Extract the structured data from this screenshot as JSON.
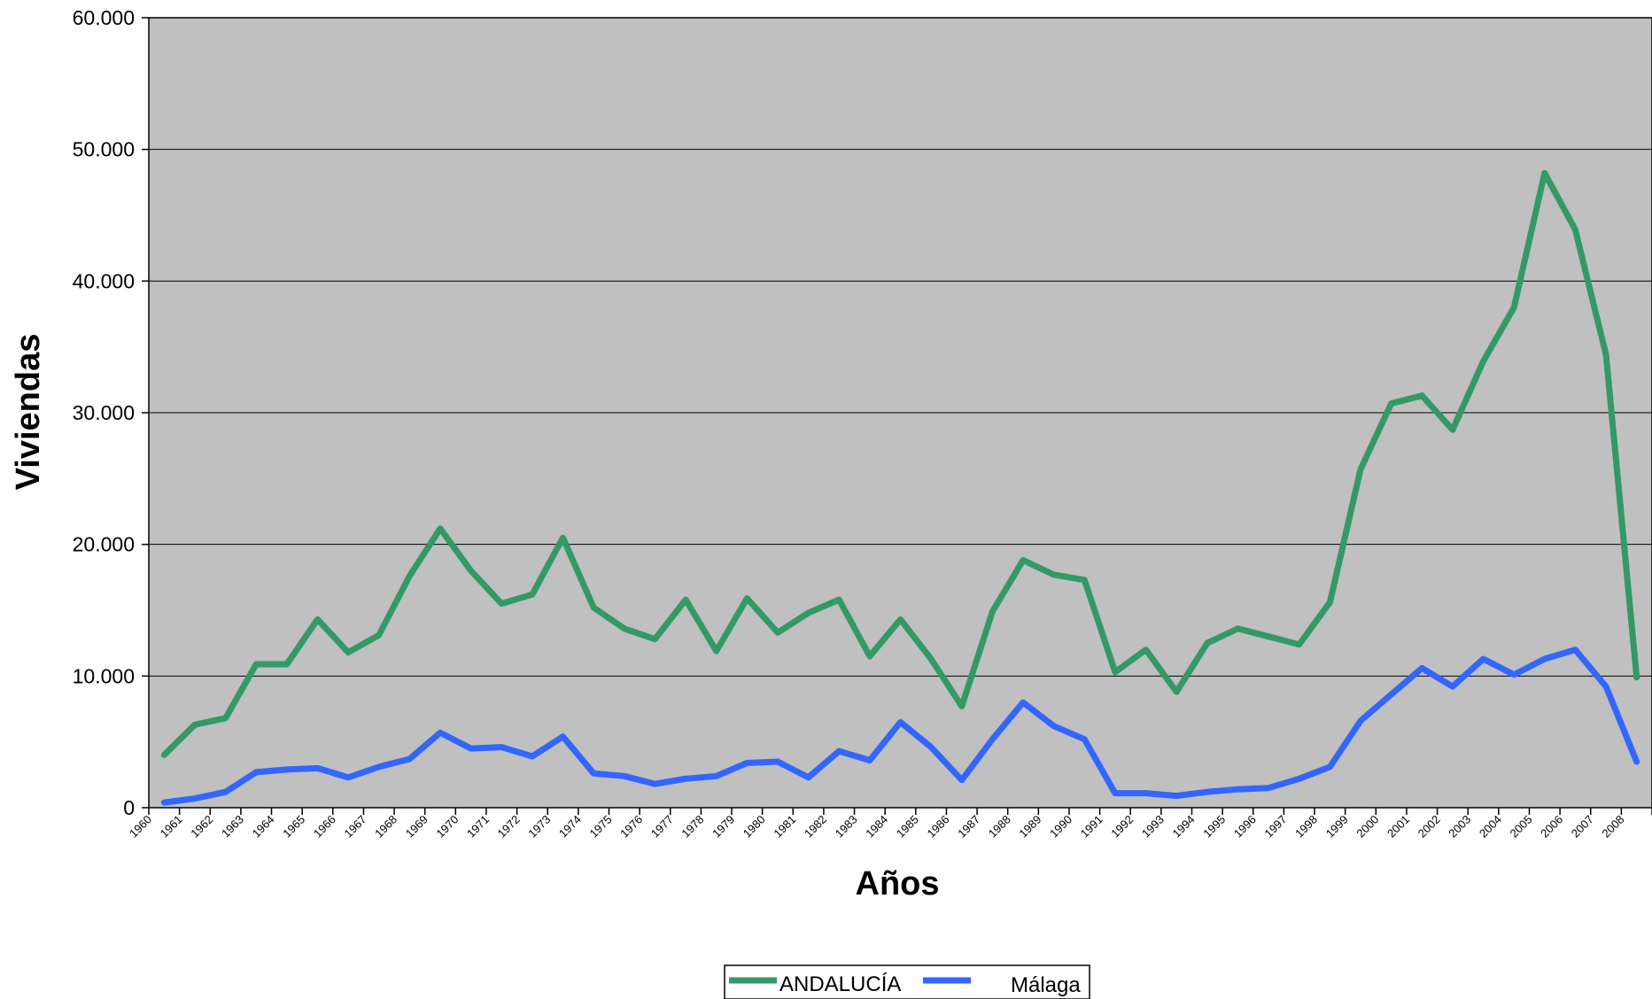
{
  "chart_data": {
    "type": "line",
    "xlabel": "Años",
    "ylabel": "Viviendas",
    "ylim": [
      0,
      60000
    ],
    "yticks": [
      "0",
      "10.000",
      "20.000",
      "30.000",
      "40.000",
      "50.000",
      "60.000"
    ],
    "x": [
      1960,
      1961,
      1962,
      1963,
      1964,
      1965,
      1966,
      1967,
      1968,
      1969,
      1970,
      1971,
      1972,
      1973,
      1974,
      1975,
      1976,
      1977,
      1978,
      1979,
      1980,
      1981,
      1982,
      1983,
      1984,
      1985,
      1986,
      1987,
      1988,
      1989,
      1990,
      1991,
      1992,
      1993,
      1994,
      1995,
      1996,
      1997,
      1998,
      1999,
      2000,
      2001,
      2002,
      2003,
      2004,
      2005,
      2006,
      2007,
      2008
    ],
    "grid": "horizontal",
    "background": "#c0c0c0",
    "legend_position": "bottom",
    "series": [
      {
        "name": "ANDALUCÍA",
        "color": "#339966",
        "values": [
          4000,
          6300,
          6800,
          10900,
          10900,
          14300,
          11800,
          13100,
          17600,
          21200,
          18000,
          15500,
          16200,
          20500,
          15200,
          13600,
          12800,
          15800,
          11900,
          15900,
          13300,
          14800,
          15800,
          11500,
          14300,
          11300,
          7700,
          14900,
          18800,
          17700,
          17300,
          10300,
          12000,
          8800,
          12500,
          13600,
          13000,
          12400,
          15600,
          25700,
          30700,
          31300,
          28700,
          33900,
          38000,
          48200,
          43900,
          34400,
          9900
        ]
      },
      {
        "name": "Málaga",
        "color": "#3366ff",
        "values": [
          400,
          700,
          1200,
          2700,
          2900,
          3000,
          2300,
          3100,
          3700,
          5700,
          4500,
          4600,
          3900,
          5400,
          2600,
          2400,
          1800,
          2200,
          2400,
          3400,
          3500,
          2300,
          4300,
          3600,
          6500,
          4600,
          2100,
          5200,
          8000,
          6200,
          5200,
          1100,
          1100,
          900,
          1200,
          1400,
          1500,
          2200,
          3100,
          6600,
          8600,
          10600,
          9200,
          11300,
          10100,
          11300,
          12000,
          9200,
          3500
        ]
      }
    ]
  }
}
